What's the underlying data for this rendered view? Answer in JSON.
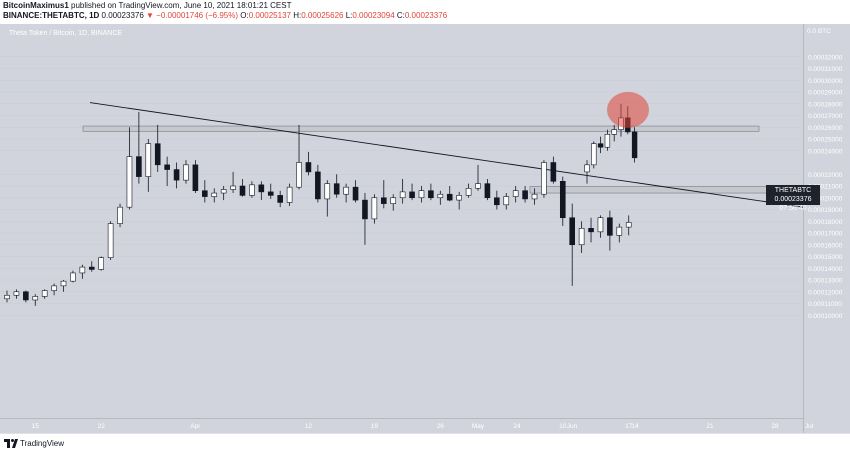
{
  "header": {
    "author": "BitcoinMaximus1",
    "published_text": "published on TradingView.com, June 10, 2021 18:01:21 CEST",
    "symbol_line": "BINANCE:THETABTC, 1D",
    "last_value": "0.00023376",
    "change_text": "▼ −0.00001746 (−6.95%)",
    "open_label": "O:",
    "open_value": "0.00025137",
    "high_label": "H:",
    "high_value": "0.00025626",
    "low_label": "L:",
    "low_value": "0.00023094",
    "close_label": "C:",
    "close_value": "0.00023376"
  },
  "chart_title": "Theta Token / Bitcoin, 1D, BINANCE",
  "price_badge": {
    "symbol": "THETABTC",
    "price": "0.00023376",
    "countdown": "07:58:40"
  },
  "footer": {
    "brand": "TradingView"
  },
  "colors": {
    "up": "#ffffff",
    "down": "#131722",
    "background": "#d1d4dc",
    "zone_fill": "#c6c8ce",
    "highlight": "#e0453b"
  },
  "chart_data": {
    "type": "candlestick",
    "title": "Theta Token / Bitcoin, 1D, BINANCE",
    "currency_label": "BTC",
    "ylim": [
      1e-05,
      0.00033
    ],
    "y_ticks": [
      {
        "value": 0.00032,
        "label": "0.00032000"
      },
      {
        "value": 0.00031,
        "label": "0.00031000"
      },
      {
        "value": 0.0003,
        "label": "0.00030000"
      },
      {
        "value": 0.00029,
        "label": "0.00029000"
      },
      {
        "value": 0.00028,
        "label": "0.00028000"
      },
      {
        "value": 0.00027,
        "label": "0.00027000"
      },
      {
        "value": 0.00026,
        "label": "0.00026000"
      },
      {
        "value": 0.00025,
        "label": "0.00025000"
      },
      {
        "value": 0.00024,
        "label": "0.00024000"
      },
      {
        "value": 0.00022,
        "label": "0.00022000"
      },
      {
        "value": 0.00021,
        "label": "0.00021000"
      },
      {
        "value": 0.0002,
        "label": "0.00020000"
      },
      {
        "value": 0.00019,
        "label": "0.00019000"
      },
      {
        "value": 0.00018,
        "label": "0.00018000"
      },
      {
        "value": 0.00017,
        "label": "0.00017000"
      },
      {
        "value": 0.00016,
        "label": "0.00016000"
      },
      {
        "value": 0.00015,
        "label": "0.00015000"
      },
      {
        "value": 0.00014,
        "label": "0.00014000"
      },
      {
        "value": 0.00013,
        "label": "0.00013000"
      },
      {
        "value": 0.00012,
        "label": "0.00012000"
      },
      {
        "value": 0.00011,
        "label": "0.00011000"
      },
      {
        "value": 0.0001,
        "label": "0.00010000"
      }
    ],
    "top_axis_label": "0.0",
    "x_ticks": [
      {
        "index": 3,
        "label": "15"
      },
      {
        "index": 10,
        "label": "22"
      },
      {
        "index": 20,
        "label": "Apr"
      },
      {
        "index": 32,
        "label": "12"
      },
      {
        "index": 39,
        "label": "19"
      },
      {
        "index": 46,
        "label": "26"
      },
      {
        "index": 50,
        "label": "May"
      },
      {
        "index": 59,
        "label": "10"
      },
      {
        "index": 66,
        "label": "17"
      },
      {
        "index": 73,
        "label": "24"
      },
      {
        "index": 81,
        "label": "Jun"
      },
      {
        "index": 88,
        "label": "14"
      },
      {
        "index": 95,
        "label": "21"
      },
      {
        "index": 102,
        "label": "28"
      },
      {
        "index": 109,
        "label": "Jul"
      }
    ],
    "candles": [
      [
        0.000114,
        0.000121,
        0.000111,
        0.000117
      ],
      [
        0.000117,
        0.000122,
        0.000114,
        0.00012
      ],
      [
        0.00012,
        0.000121,
        0.000111,
        0.000113
      ],
      [
        0.000113,
        0.000118,
        0.000108,
        0.000116
      ],
      [
        0.000116,
        0.000122,
        0.000114,
        0.000121
      ],
      [
        0.000121,
        0.000127,
        0.000117,
        0.000125
      ],
      [
        0.000125,
        0.00013,
        0.00012,
        0.000129
      ],
      [
        0.000129,
        0.000138,
        0.000128,
        0.000136
      ],
      [
        0.000136,
        0.000143,
        0.000131,
        0.000141
      ],
      [
        0.000141,
        0.000146,
        0.000137,
        0.000139
      ],
      [
        0.000139,
        0.00015,
        0.000138,
        0.000149
      ],
      [
        0.000149,
        0.00018,
        0.000147,
        0.000178
      ],
      [
        0.000178,
        0.000195,
        0.000175,
        0.000192
      ],
      [
        0.000192,
        0.00026,
        0.00019,
        0.000235
      ],
      [
        0.000235,
        0.000273,
        0.000212,
        0.000218
      ],
      [
        0.000218,
        0.00025,
        0.000205,
        0.000246
      ],
      [
        0.000246,
        0.000262,
        0.000222,
        0.000228
      ],
      [
        0.000228,
        0.000235,
        0.00021,
        0.000224
      ],
      [
        0.000224,
        0.00023,
        0.000208,
        0.000215
      ],
      [
        0.000215,
        0.000232,
        0.000212,
        0.000228
      ],
      [
        0.000228,
        0.000232,
        0.000204,
        0.000206
      ],
      [
        0.000206,
        0.000215,
        0.000196,
        0.000201
      ],
      [
        0.000201,
        0.000208,
        0.000196,
        0.000204
      ],
      [
        0.000204,
        0.00021,
        0.000198,
        0.000207
      ],
      [
        0.000207,
        0.000222,
        0.000204,
        0.00021
      ],
      [
        0.00021,
        0.000216,
        0.000201,
        0.000202
      ],
      [
        0.000202,
        0.000214,
        0.0002,
        0.000211
      ],
      [
        0.000211,
        0.000214,
        0.000198,
        0.000205
      ],
      [
        0.000205,
        0.000212,
        0.000199,
        0.000202
      ],
      [
        0.000202,
        0.000206,
        0.000192,
        0.000196
      ],
      [
        0.000196,
        0.000212,
        0.000193,
        0.000209
      ],
      [
        0.000209,
        0.000262,
        0.000207,
        0.00023
      ],
      [
        0.00023,
        0.000239,
        0.000219,
        0.000222
      ],
      [
        0.000222,
        0.000228,
        0.000196,
        0.000199
      ],
      [
        0.000199,
        0.000215,
        0.000184,
        0.000212
      ],
      [
        0.000212,
        0.00022,
        0.0002,
        0.000203
      ],
      [
        0.000203,
        0.000212,
        0.000196,
        0.000209
      ],
      [
        0.000209,
        0.000215,
        0.000196,
        0.000198
      ],
      [
        0.000198,
        0.000204,
        0.00016,
        0.000182
      ],
      [
        0.000182,
        0.000203,
        0.000178,
        0.0002
      ],
      [
        0.0002,
        0.000215,
        0.000191,
        0.000195
      ],
      [
        0.000195,
        0.000203,
        0.000189,
        0.0002
      ],
      [
        0.0002,
        0.000216,
        0.000195,
        0.000205
      ],
      [
        0.000205,
        0.000212,
        0.000198,
        0.0002
      ],
      [
        0.0002,
        0.00021,
        0.000196,
        0.000206
      ],
      [
        0.000206,
        0.000212,
        0.000198,
        0.0002
      ],
      [
        0.0002,
        0.000206,
        0.000194,
        0.000203
      ],
      [
        0.000203,
        0.00021,
        0.000197,
        0.000198
      ],
      [
        0.000198,
        0.000205,
        0.00019,
        0.000202
      ],
      [
        0.000202,
        0.000212,
        0.0002,
        0.000208
      ],
      [
        0.000208,
        0.000228,
        0.000206,
        0.000212
      ],
      [
        0.000212,
        0.000216,
        0.000198,
        0.0002
      ],
      [
        0.0002,
        0.000206,
        0.00019,
        0.000194
      ],
      [
        0.000194,
        0.000204,
        0.00019,
        0.000201
      ],
      [
        0.000201,
        0.00021,
        0.000196,
        0.000206
      ],
      [
        0.000206,
        0.00021,
        0.000196,
        0.000199
      ],
      [
        0.000199,
        0.000208,
        0.000194,
        0.000203
      ],
      [
        0.000203,
        0.000232,
        0.0002,
        0.00023
      ],
      [
        0.00023,
        0.000235,
        0.000212,
        0.000214
      ],
      [
        0.000214,
        0.000218,
        0.000176,
        0.000183
      ],
      [
        0.000183,
        0.000195,
        0.000125,
        0.00016
      ],
      [
        0.00016,
        0.00018,
        0.000153,
        0.000174
      ],
      [
        0.000174,
        0.000183,
        0.000162,
        0.000171
      ],
      [
        0.000171,
        0.000185,
        0.000166,
        0.000183
      ],
      [
        0.000183,
        0.000189,
        0.000155,
        0.000168
      ],
      [
        0.000168,
        0.000178,
        0.000162,
        0.000175
      ],
      [
        0.000175,
        0.000185,
        0.000168,
        0.000179
      ]
    ]
  }
}
